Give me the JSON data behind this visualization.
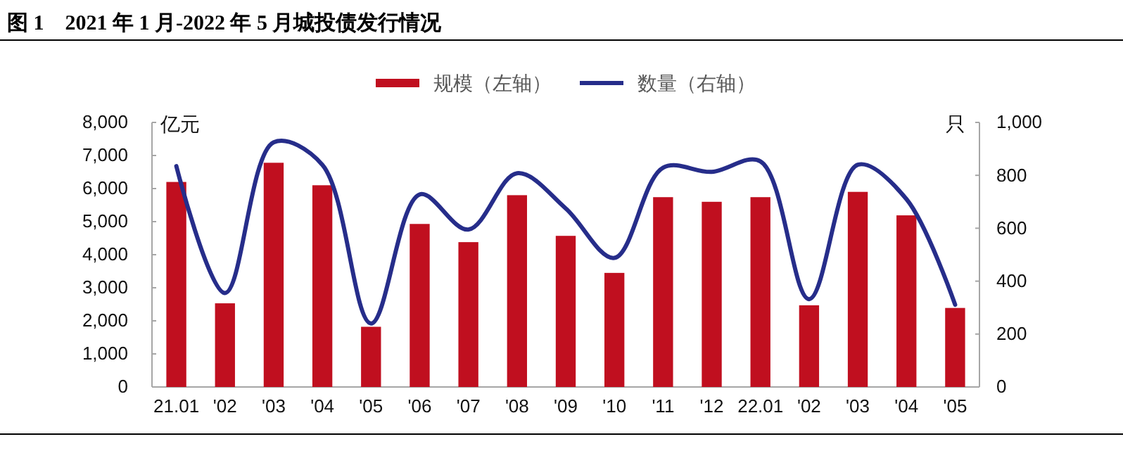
{
  "chart_data": {
    "type": "bar",
    "title": "图 1　2021 年 1 月-2022 年 5 月城投债发行情况",
    "categories": [
      "21.01",
      "'02",
      "'03",
      "'04",
      "'05",
      "'06",
      "'07",
      "'08",
      "'09",
      "'10",
      "'11",
      "'12",
      "22.01",
      "'02",
      "'03",
      "'04",
      "'05"
    ],
    "series": [
      {
        "name": "规模（左轴）",
        "color": "#c00f1f",
        "values": [
          6200,
          2530,
          6780,
          6100,
          1820,
          4930,
          4380,
          5800,
          4570,
          3450,
          5740,
          5600,
          5740,
          2470,
          5900,
          5190,
          2390
        ]
      },
      {
        "name": "数量（右轴）",
        "type": "line",
        "axis": "y2",
        "color": "#262d8a",
        "values": [
          835,
          355,
          925,
          840,
          240,
          728,
          595,
          808,
          675,
          488,
          829,
          813,
          853,
          332,
          840,
          710,
          311
        ]
      }
    ],
    "ylabel": "亿元",
    "y2label": "只",
    "ylim": [
      0,
      8000
    ],
    "yticks": [
      0,
      {
        "value": 1000,
        "label": "1,000"
      },
      {
        "value": 2000,
        "label": "2,000"
      },
      {
        "value": 3000,
        "label": "3,000"
      },
      {
        "value": 4000,
        "label": "4,000"
      },
      {
        "value": 5000,
        "label": "5,000"
      },
      {
        "value": 6000,
        "label": "6,000"
      },
      {
        "value": 7000,
        "label": "7,000"
      },
      {
        "value": 8000,
        "label": "8,000"
      }
    ],
    "y2lim": [
      0,
      1000
    ],
    "y2ticks": [
      0,
      200,
      400,
      600,
      800,
      {
        "value": 1000,
        "label": "1,000"
      }
    ],
    "legend": "top",
    "line_style": "solid"
  }
}
